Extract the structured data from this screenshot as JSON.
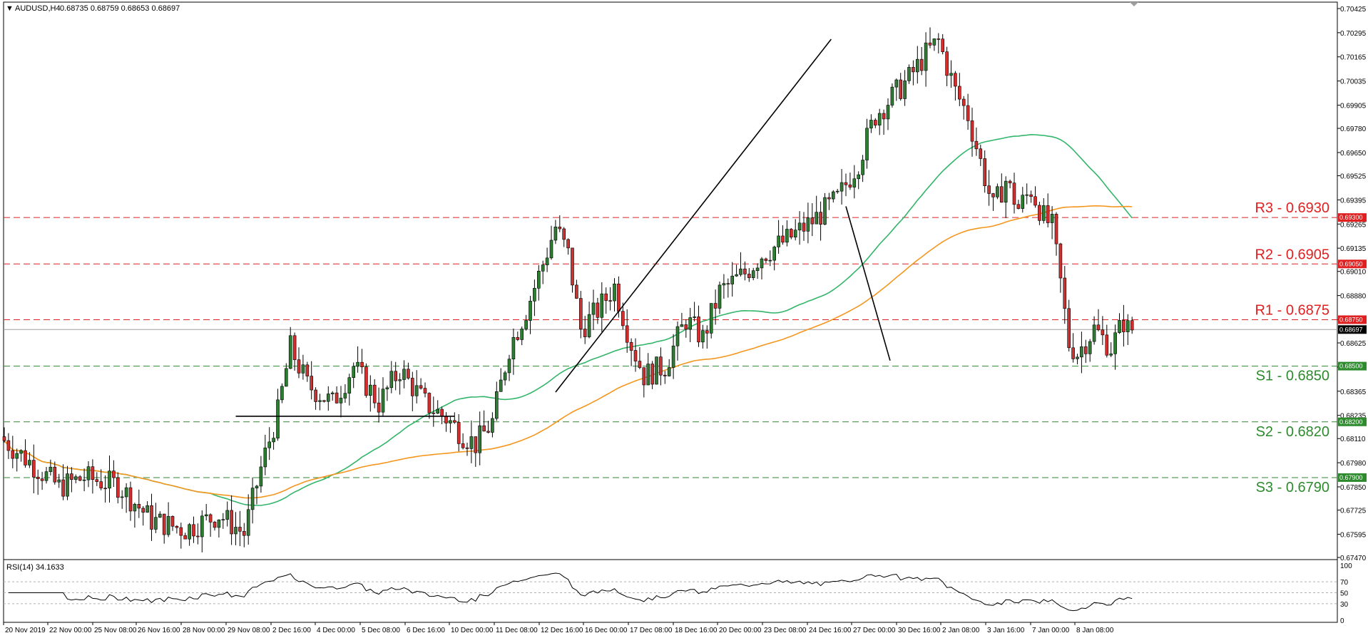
{
  "header": {
    "title": "AUDUSD,H4",
    "ohlc": "0.68735 0.68759 0.68653 0.68697"
  },
  "colors": {
    "bull": "#2e7d32",
    "bear": "#d32f2f",
    "ma_green": "#33b56a",
    "ma_orange": "#f5961e",
    "resistance": "#e02020",
    "support": "#2d8a2d",
    "trendline": "#000000",
    "rsi": "#000000"
  },
  "chart_data": [
    {
      "type": "candlestick",
      "title": "AUDUSD,H4",
      "ylim": [
        0.6747,
        0.70425
      ],
      "y_ticks": [
        "0.70425",
        "0.70295",
        "0.70165",
        "0.70035",
        "0.69905",
        "0.69780",
        "0.69650",
        "0.69525",
        "0.69395",
        "0.69265",
        "0.69135",
        "0.69010",
        "0.68880",
        "0.68750",
        "0.68625",
        "0.68495",
        "0.68365",
        "0.68235",
        "0.68110",
        "0.67980",
        "0.67850",
        "0.67725",
        "0.67595",
        "0.67470"
      ],
      "x_ticks": [
        "20 Nov 2019",
        "22 Nov 00:00",
        "25 Nov 08:00",
        "26 Nov 16:00",
        "28 Nov 00:00",
        "29 Nov 08:00",
        "2 Dec 16:00",
        "4 Dec 00:00",
        "5 Dec 08:00",
        "6 Dec 16:00",
        "10 Dec 00:00",
        "11 Dec 08:00",
        "12 Dec 16:00",
        "16 Dec 00:00",
        "17 Dec 08:00",
        "18 Dec 16:00",
        "20 Dec 00:00",
        "23 Dec 08:00",
        "24 Dec 16:00",
        "27 Dec 00:00",
        "30 Dec 16:00",
        "2 Jan 08:00",
        "3 Jan 16:00",
        "7 Jan 00:00",
        "8 Jan 08:00"
      ],
      "current_price": "0.68697",
      "levels": [
        {
          "name": "R3",
          "label": "R3 - 0.6930",
          "value": 0.693,
          "tag": "0.69300",
          "kind": "resistance"
        },
        {
          "name": "R2",
          "label": "R2 - 0.6905",
          "value": 0.6905,
          "tag": "0.69050",
          "kind": "resistance"
        },
        {
          "name": "R1",
          "label": "R1 - 0.6875",
          "value": 0.6875,
          "tag": "0.68750",
          "kind": "resistance"
        },
        {
          "name": "S1",
          "label": "S1 - 0.6850",
          "value": 0.685,
          "tag": "0.68500",
          "kind": "support"
        },
        {
          "name": "S2",
          "label": "S2 - 0.6820",
          "value": 0.682,
          "tag": "0.68200",
          "kind": "support"
        },
        {
          "name": "S3",
          "label": "S3 - 0.6790",
          "value": 0.679,
          "tag": "0.67900",
          "kind": "support"
        }
      ],
      "path_anchors": [
        [
          0,
          0.6812
        ],
        [
          14,
          0.6785
        ],
        [
          20,
          0.679
        ],
        [
          28,
          0.6786
        ],
        [
          36,
          0.6767
        ],
        [
          44,
          0.6762
        ],
        [
          52,
          0.677
        ],
        [
          58,
          0.676
        ],
        [
          62,
          0.6795
        ],
        [
          66,
          0.6825
        ],
        [
          69,
          0.686
        ],
        [
          73,
          0.684
        ],
        [
          79,
          0.683
        ],
        [
          84,
          0.685
        ],
        [
          90,
          0.683
        ],
        [
          95,
          0.6848
        ],
        [
          101,
          0.683
        ],
        [
          106,
          0.6822
        ],
        [
          110,
          0.6813
        ],
        [
          113,
          0.6808
        ],
        [
          117,
          0.682
        ],
        [
          121,
          0.686
        ],
        [
          125,
          0.688
        ],
        [
          129,
          0.6905
        ],
        [
          132,
          0.6925
        ],
        [
          135,
          0.691
        ],
        [
          138,
          0.687
        ],
        [
          142,
          0.688
        ],
        [
          146,
          0.6893
        ],
        [
          150,
          0.6862
        ],
        [
          153,
          0.6845
        ],
        [
          158,
          0.685
        ],
        [
          163,
          0.6875
        ],
        [
          167,
          0.6865
        ],
        [
          171,
          0.689
        ],
        [
          177,
          0.69
        ],
        [
          181,
          0.691
        ],
        [
          187,
          0.6918
        ],
        [
          193,
          0.6928
        ],
        [
          199,
          0.694
        ],
        [
          204,
          0.696
        ],
        [
          208,
          0.6985
        ],
        [
          212,
          0.6995
        ],
        [
          216,
          0.7005
        ],
        [
          220,
          0.7018
        ],
        [
          223,
          0.7025
        ],
        [
          227,
          0.6998
        ],
        [
          230,
          0.6985
        ],
        [
          233,
          0.696
        ],
        [
          236,
          0.6935
        ],
        [
          239,
          0.695
        ],
        [
          242,
          0.6935
        ],
        [
          245,
          0.6945
        ],
        [
          248,
          0.693
        ],
        [
          250,
          0.6925
        ],
        [
          252,
          0.6895
        ],
        [
          254,
          0.6862
        ],
        [
          256,
          0.6857
        ],
        [
          260,
          0.687
        ],
        [
          264,
          0.686
        ],
        [
          267,
          0.6874
        ],
        [
          268,
          0.687
        ]
      ],
      "candle_count": 269,
      "rsi": {
        "label": "RSI(14) 34.1633",
        "value": 34.1633,
        "ylim": [
          0,
          100
        ],
        "y_ticks": [
          "100",
          "70",
          "50",
          "30",
          "0"
        ]
      }
    }
  ]
}
